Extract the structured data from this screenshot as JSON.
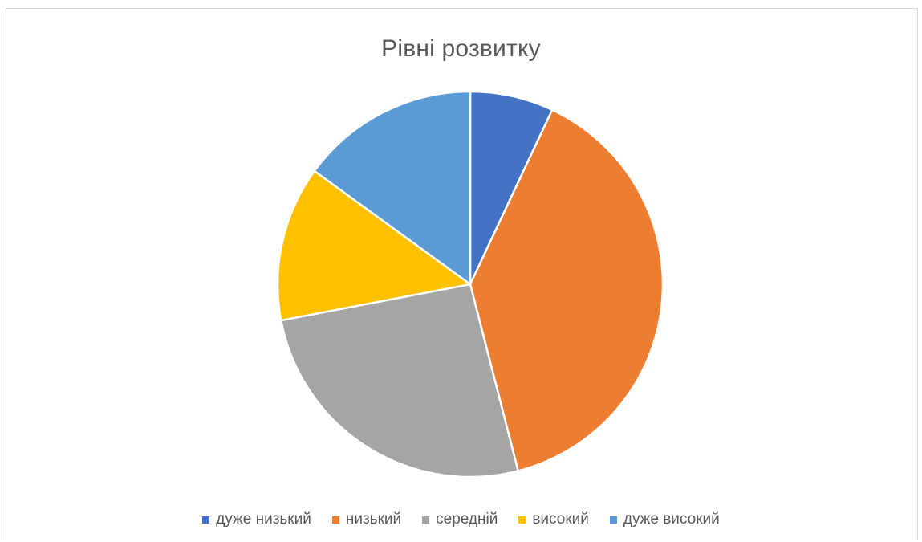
{
  "chart_data": {
    "type": "pie",
    "title": "Рівні розвитку",
    "categories": [
      "дуже низький",
      "низький",
      "середній",
      "високий",
      "дуже високий"
    ],
    "values": [
      7,
      39,
      26,
      13,
      15
    ],
    "colors": [
      "#4472c4",
      "#ed7d31",
      "#a5a5a5",
      "#ffc000",
      "#5b9bd5"
    ],
    "legend_position": "bottom"
  }
}
